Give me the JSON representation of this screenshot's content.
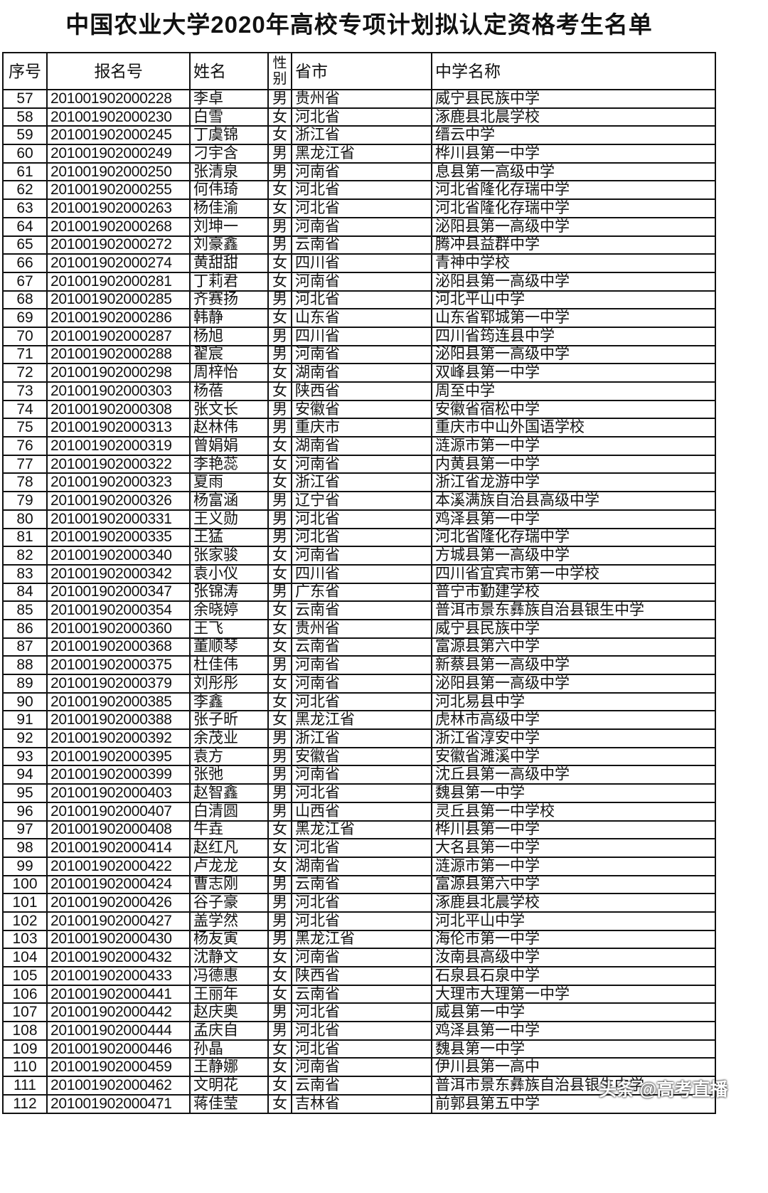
{
  "title": "中国农业大学2020年高校专项计划拟认定资格考生名单",
  "headers": [
    "序号",
    "报名号",
    "姓名",
    "性别",
    "省市",
    "中学名称"
  ],
  "rows": [
    [
      "57",
      "201001902000228",
      "李卓",
      "男",
      "贵州省",
      "威宁县民族中学"
    ],
    [
      "58",
      "201001902000230",
      "白雪",
      "女",
      "河北省",
      "涿鹿县北晨学校"
    ],
    [
      "59",
      "201001902000245",
      "丁虞锦",
      "女",
      "浙江省",
      "缙云中学"
    ],
    [
      "60",
      "201001902000249",
      "刁宇含",
      "男",
      "黑龙江省",
      "桦川县第一中学"
    ],
    [
      "61",
      "201001902000250",
      "张清泉",
      "男",
      "河南省",
      "息县第一高级中学"
    ],
    [
      "62",
      "201001902000255",
      "何伟琦",
      "女",
      "河北省",
      "河北省隆化存瑞中学"
    ],
    [
      "63",
      "201001902000263",
      "杨佳渝",
      "女",
      "河北省",
      "河北省隆化存瑞中学"
    ],
    [
      "64",
      "201001902000268",
      "刘坤一",
      "男",
      "河南省",
      "泌阳县第一高级中学"
    ],
    [
      "65",
      "201001902000272",
      "刘豪鑫",
      "男",
      "云南省",
      "腾冲县益群中学"
    ],
    [
      "66",
      "201001902000274",
      "黄甜甜",
      "女",
      "四川省",
      "青神中学校"
    ],
    [
      "67",
      "201001902000281",
      "丁莉君",
      "女",
      "河南省",
      "泌阳县第一高级中学"
    ],
    [
      "68",
      "201001902000285",
      "齐赛扬",
      "男",
      "河北省",
      "河北平山中学"
    ],
    [
      "69",
      "201001902000286",
      "韩静",
      "女",
      "山东省",
      "山东省郓城第一中学"
    ],
    [
      "70",
      "201001902000287",
      "杨旭",
      "男",
      "四川省",
      "四川省筠连县中学"
    ],
    [
      "71",
      "201001902000288",
      "翟宸",
      "男",
      "河南省",
      "泌阳县第一高级中学"
    ],
    [
      "72",
      "201001902000298",
      "周梓怡",
      "女",
      "湖南省",
      "双峰县第一中学"
    ],
    [
      "73",
      "201001902000303",
      "杨蓓",
      "女",
      "陕西省",
      "周至中学"
    ],
    [
      "74",
      "201001902000308",
      "张文长",
      "男",
      "安徽省",
      "安徽省宿松中学"
    ],
    [
      "75",
      "201001902000313",
      "赵林伟",
      "男",
      "重庆市",
      "重庆市中山外国语学校"
    ],
    [
      "76",
      "201001902000319",
      "曾娟娟",
      "女",
      "湖南省",
      "涟源市第一中学"
    ],
    [
      "77",
      "201001902000322",
      "李艳蕊",
      "女",
      "河南省",
      "内黄县第一中学"
    ],
    [
      "78",
      "201001902000323",
      "夏雨",
      "女",
      "浙江省",
      "浙江省龙游中学"
    ],
    [
      "79",
      "201001902000326",
      "杨富涵",
      "男",
      "辽宁省",
      "本溪满族自治县高级中学"
    ],
    [
      "80",
      "201001902000331",
      "王义勋",
      "男",
      "河北省",
      "鸡泽县第一中学"
    ],
    [
      "81",
      "201001902000335",
      "王猛",
      "男",
      "河北省",
      "河北省隆化存瑞中学"
    ],
    [
      "82",
      "201001902000340",
      "张家骏",
      "女",
      "河南省",
      "方城县第一高级中学"
    ],
    [
      "83",
      "201001902000342",
      "袁小仪",
      "女",
      "四川省",
      "四川省宜宾市第一中学校"
    ],
    [
      "84",
      "201001902000347",
      "张锦涛",
      "男",
      "广东省",
      "普宁市勤建学校"
    ],
    [
      "85",
      "201001902000354",
      "余晓婷",
      "女",
      "云南省",
      "普洱市景东彝族自治县银生中学"
    ],
    [
      "86",
      "201001902000360",
      "王飞",
      "女",
      "贵州省",
      "威宁县民族中学"
    ],
    [
      "87",
      "201001902000368",
      "董顺琴",
      "女",
      "云南省",
      "富源县第六中学"
    ],
    [
      "88",
      "201001902000375",
      "杜佳伟",
      "男",
      "河南省",
      "新蔡县第一高级中学"
    ],
    [
      "89",
      "201001902000379",
      "刘彤彤",
      "女",
      "河南省",
      "泌阳县第一高级中学"
    ],
    [
      "90",
      "201001902000385",
      "李鑫",
      "女",
      "河北省",
      "河北易县中学"
    ],
    [
      "91",
      "201001902000388",
      "张子昕",
      "女",
      "黑龙江省",
      "虎林市高级中学"
    ],
    [
      "92",
      "201001902000392",
      "余茂业",
      "男",
      "浙江省",
      "浙江省淳安中学"
    ],
    [
      "93",
      "201001902000395",
      "袁方",
      "男",
      "安徽省",
      "安徽省濉溪中学"
    ],
    [
      "94",
      "201001902000399",
      "张弛",
      "男",
      "河南省",
      "沈丘县第一高级中学"
    ],
    [
      "95",
      "201001902000403",
      "赵智鑫",
      "男",
      "河北省",
      "魏县第一中学"
    ],
    [
      "96",
      "201001902000407",
      "白清圆",
      "男",
      "山西省",
      "灵丘县第一中学校"
    ],
    [
      "97",
      "201001902000408",
      "牛垚",
      "女",
      "黑龙江省",
      "桦川县第一中学"
    ],
    [
      "98",
      "201001902000414",
      "赵红凡",
      "女",
      "河北省",
      "大名县第一中学"
    ],
    [
      "99",
      "201001902000422",
      "卢龙龙",
      "女",
      "湖南省",
      "涟源市第一中学"
    ],
    [
      "100",
      "201001902000424",
      "曹志刚",
      "男",
      "云南省",
      "富源县第六中学"
    ],
    [
      "101",
      "201001902000426",
      "谷子豪",
      "男",
      "河北省",
      "涿鹿县北晨学校"
    ],
    [
      "102",
      "201001902000427",
      "盖学然",
      "男",
      "河北省",
      "河北平山中学"
    ],
    [
      "103",
      "201001902000430",
      "杨友寅",
      "男",
      "黑龙江省",
      "海伦市第一中学"
    ],
    [
      "104",
      "201001902000432",
      "沈静文",
      "女",
      "河南省",
      "汝南县高级中学"
    ],
    [
      "105",
      "201001902000433",
      "冯德惠",
      "女",
      "陕西省",
      "石泉县石泉中学"
    ],
    [
      "106",
      "201001902000441",
      "王丽年",
      "女",
      "云南省",
      "大理市大理第一中学"
    ],
    [
      "107",
      "201001902000442",
      "赵庆奥",
      "男",
      "河北省",
      "威县第一中学"
    ],
    [
      "108",
      "201001902000444",
      "孟庆自",
      "男",
      "河北省",
      "鸡泽县第一中学"
    ],
    [
      "109",
      "201001902000446",
      "孙晶",
      "女",
      "河北省",
      "魏县第一中学"
    ],
    [
      "110",
      "201001902000459",
      "王静娜",
      "女",
      "河南省",
      "伊川县第一高中"
    ],
    [
      "111",
      "201001902000462",
      "文明花",
      "女",
      "云南省",
      "普洱市景东彝族自治县银生中学"
    ],
    [
      "112",
      "201001902000471",
      "蒋佳莹",
      "女",
      "吉林省",
      "前郭县第五中学"
    ]
  ],
  "watermark": "头条 @高考直播"
}
